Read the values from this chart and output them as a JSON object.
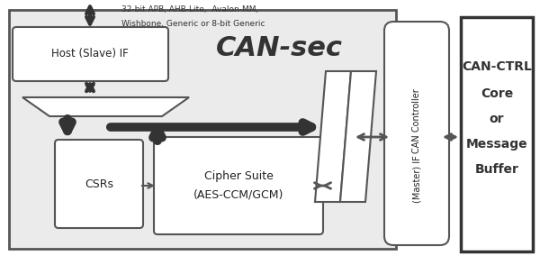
{
  "title": "CAN-sec",
  "bg_color": "#ffffff",
  "outer_box_fc": "#eeeeee",
  "white": "#ffffff",
  "dark": "#555555",
  "text_dark": "#222222",
  "top_label_line1": "32-bit APB, AHB-Lite,  Avalon-MM,",
  "top_label_line2": "Wishbone, Generic or 8-bit Generic",
  "host_if_label": "Host (Slave) IF",
  "csrs_label": "CSRs",
  "cipher_label_line1": "Cipher Suite",
  "cipher_label_line2": "(AES-CCM/GCM)",
  "can_ctrl_label_line1": "CAN Controller",
  "can_ctrl_label_line2": "(Master) IF",
  "can_ctrl_box_label": [
    "CAN-CTRL",
    "Core",
    "or",
    "Message",
    "Buffer"
  ],
  "figw": 6.0,
  "figh": 3.04
}
